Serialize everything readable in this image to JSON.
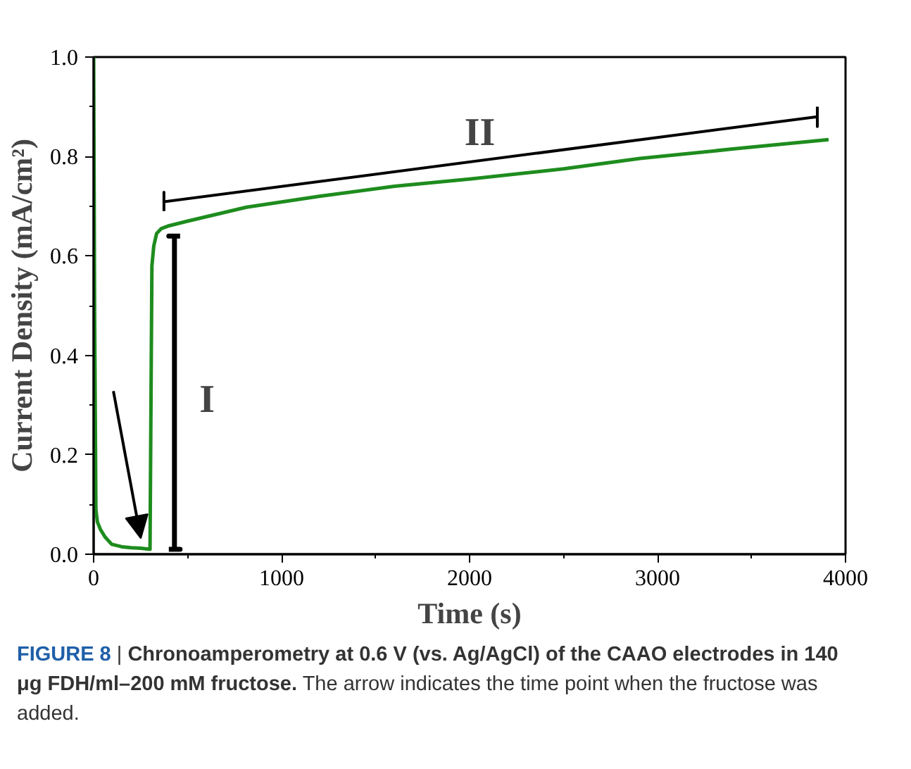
{
  "chart_data": {
    "type": "line",
    "xlabel": "Time (s)",
    "ylabel": "Current Density (mA/cm²)",
    "x": [
      0,
      5,
      12,
      20,
      36,
      60,
      96,
      150,
      200,
      250,
      300,
      305,
      310,
      320,
      335,
      360,
      395,
      500,
      813,
      1200,
      1600,
      2009,
      2500,
      2906,
      3400,
      3910
    ],
    "series": [
      {
        "color": "#1e8c1e",
        "values": [
          1.0,
          0.5,
          0.09,
          0.065,
          0.05,
          0.035,
          0.02,
          0.015,
          0.013,
          0.012,
          0.01,
          0.3,
          0.58,
          0.62,
          0.645,
          0.655,
          0.66,
          0.67,
          0.698,
          0.72,
          0.74,
          0.755,
          0.775,
          0.796,
          0.815,
          0.834
        ]
      },
      {
        "type": "line",
        "x": [
          400,
          460,
          430,
          430,
          400,
          460
        ],
        "color": "#000000",
        "values": [
          0.01,
          0.01,
          0.01,
          0.64,
          0.64,
          0.64
        ]
      },
      {
        "type": "line",
        "x": [
          374,
          374,
          374,
          3850,
          3850,
          3850
        ],
        "color": "#000000",
        "values": [
          0.69,
          0.728,
          0.709,
          0.88,
          0.86,
          0.9
        ]
      }
    ],
    "xlim": [
      0,
      4000
    ],
    "ylim": [
      0.0,
      1.0
    ],
    "xticks": [
      0,
      1000,
      2000,
      3000,
      4000
    ],
    "yticks": [
      {
        "value": 0.0,
        "label": "0.0"
      },
      {
        "value": 0.2,
        "label": "0.2"
      },
      {
        "value": 0.4,
        "label": "0.4"
      },
      {
        "value": 0.6,
        "label": "0.6"
      },
      {
        "value": 0.8,
        "label": "0.8"
      },
      {
        "value": 1.0,
        "label": "1.0"
      }
    ],
    "grid": false,
    "line_style": "solid",
    "marker": "none",
    "annotations": [
      "I",
      "II",
      "FIGURE 8 | Chronoamperometry at 0.6 V (vs. Ag/AgCl) of the CAAO electrodes in 140 μg FDH/ml–200 mM fructose.",
      "The arrow indicates the time point when the fructose was added."
    ]
  }
}
